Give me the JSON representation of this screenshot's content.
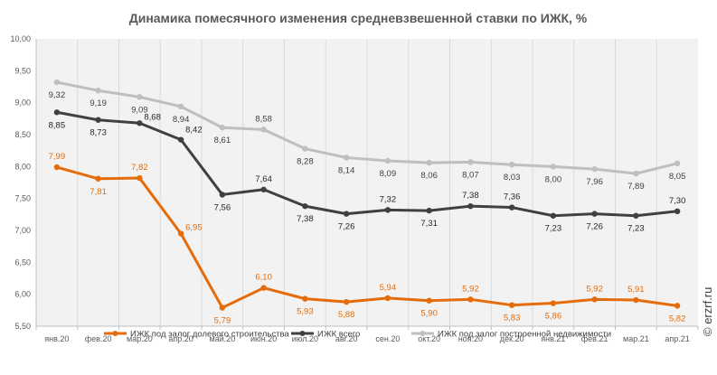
{
  "chart_data": {
    "type": "line",
    "title": "Динамика помесячного изменения средневзвешенной ставки по ИЖК, %",
    "xlabel": "",
    "ylabel": "",
    "ylim": [
      5.5,
      10.0
    ],
    "ytick_step": 0.5,
    "yticks": [
      "5,50",
      "6,00",
      "6,50",
      "7,00",
      "7,50",
      "8,00",
      "8,50",
      "9,00",
      "9,50",
      "10,00"
    ],
    "grid": "vertical",
    "legend_position": "bottom",
    "categories": [
      "янв.20",
      "фев.20",
      "мар.20",
      "апр.20",
      "май.20",
      "июн.20",
      "июл.20",
      "авг.20",
      "сен.20",
      "окт.20",
      "ноя.20",
      "дек.20",
      "янв.21",
      "фев.21",
      "мар.21",
      "апр.21"
    ],
    "series": [
      {
        "name": "ИЖК под залог долевого строительства",
        "color": "#E46C0A",
        "values": [
          7.99,
          7.81,
          7.82,
          6.95,
          5.79,
          6.1,
          5.93,
          5.88,
          5.94,
          5.9,
          5.92,
          5.83,
          5.86,
          5.92,
          5.91,
          5.82
        ]
      },
      {
        "name": "ИЖК всего",
        "color": "#404040",
        "values": [
          8.85,
          8.73,
          8.68,
          8.42,
          7.56,
          7.64,
          7.38,
          7.26,
          7.32,
          7.31,
          7.38,
          7.36,
          7.23,
          7.26,
          7.23,
          7.3
        ]
      },
      {
        "name": "ИЖК под залог построенной недвижимости",
        "color": "#BFBFBF",
        "values": [
          9.32,
          9.19,
          9.09,
          8.94,
          8.61,
          8.58,
          8.28,
          8.14,
          8.09,
          8.06,
          8.07,
          8.03,
          8.0,
          7.96,
          7.89,
          8.05
        ]
      }
    ]
  },
  "watermark": "© erzrf.ru"
}
